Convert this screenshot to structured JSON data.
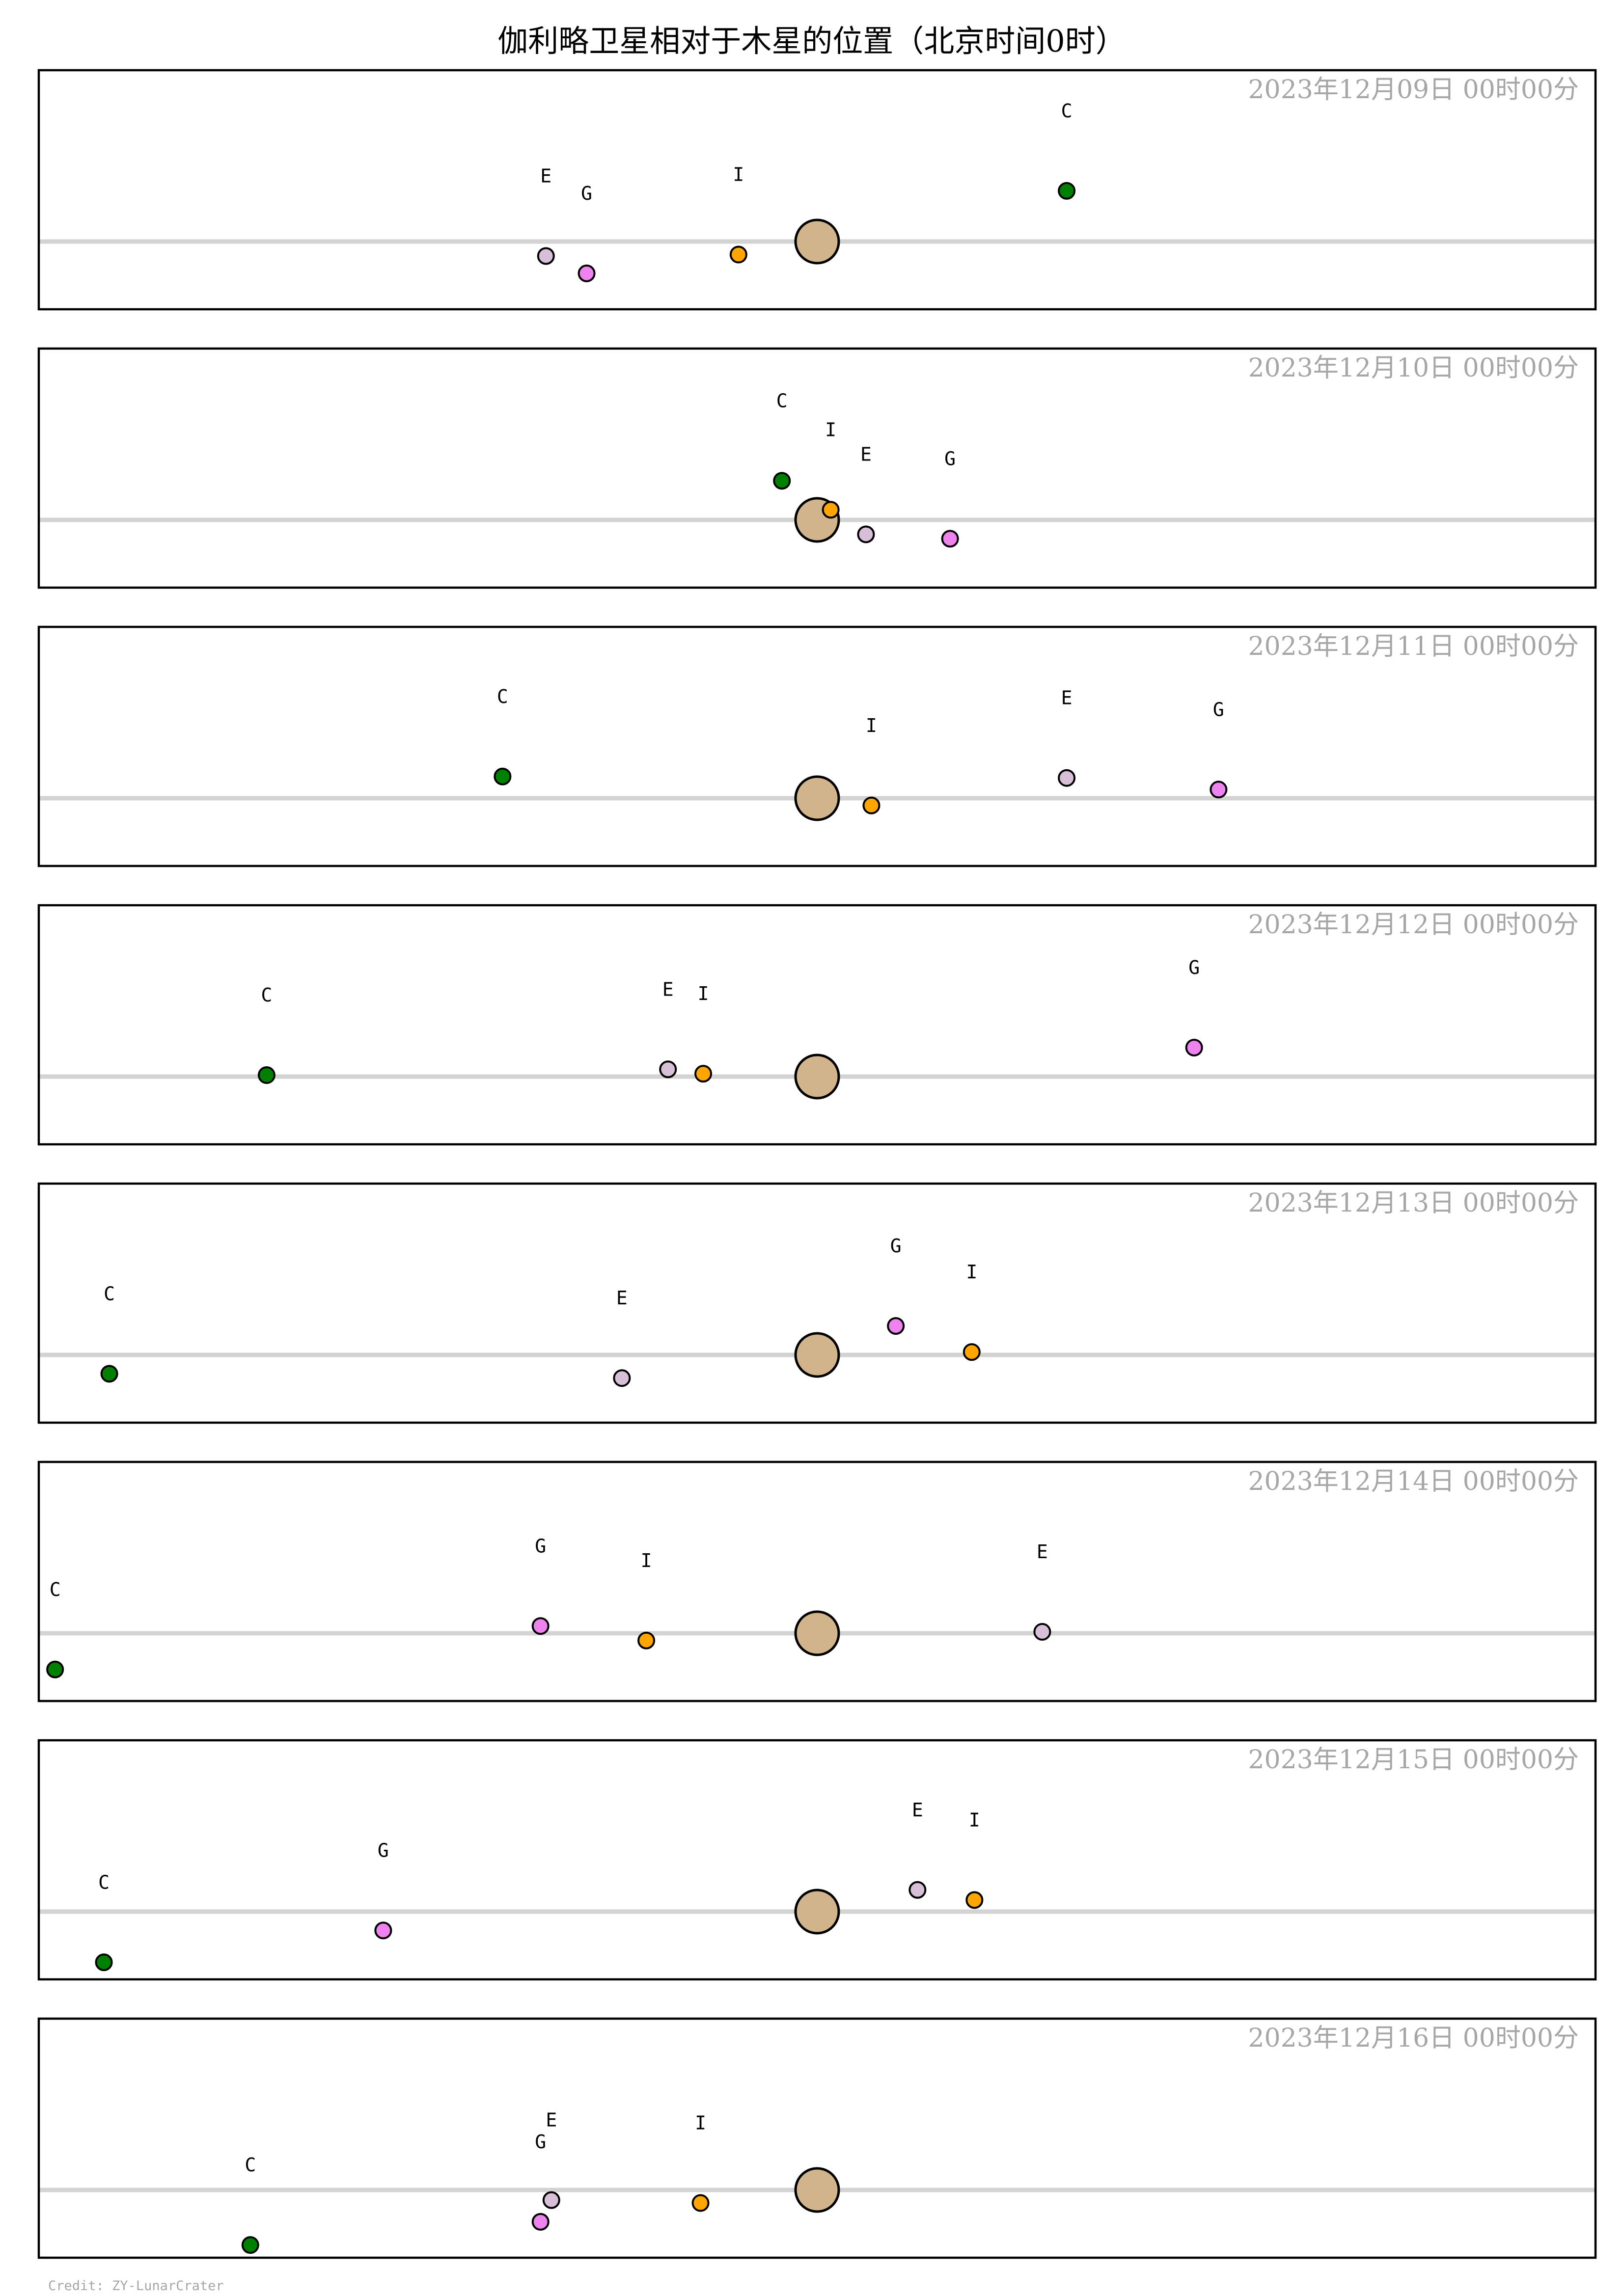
{
  "title": "伽利略卫星相对于木星的位置（北京时间0时）",
  "credit": "Credit: ZY-LunarCrater",
  "colors": {
    "jupiter": "#d2b48c",
    "io": "#ffa500",
    "europa": "#d8bfd8",
    "ganymede": "#ee82ee",
    "callisto": "#008000",
    "axis": "#d3d3d3",
    "date_text": "#a6a6a6"
  },
  "chart_data": {
    "type": "scatter",
    "x_unit": "Jupiter radii (east-west offset, approx.)",
    "y_unit": "Jupiter radii (north-south offset, approx.)",
    "xlim": [
      -28.7,
      28.7
    ],
    "ylim": [
      -3,
      11.8
    ],
    "grid": false,
    "panels": [
      {
        "date": "2023年12月09日  00时00分",
        "jupiter": {
          "x": 0,
          "y": 0
        },
        "moons": [
          {
            "label": "E",
            "x": -10.0,
            "y": -1.0
          },
          {
            "label": "G",
            "x": -8.5,
            "y": -2.2
          },
          {
            "label": "I",
            "x": -2.9,
            "y": -0.9
          },
          {
            "label": "C",
            "x": 9.2,
            "y": 3.5
          }
        ]
      },
      {
        "date": "2023年12月10日  00时00分",
        "jupiter": {
          "x": 0,
          "y": 0
        },
        "moons": [
          {
            "label": "C",
            "x": -1.3,
            "y": 2.7
          },
          {
            "label": "I",
            "x": 0.5,
            "y": 0.7
          },
          {
            "label": "E",
            "x": 1.8,
            "y": -1.0
          },
          {
            "label": "G",
            "x": 4.9,
            "y": -1.3
          }
        ]
      },
      {
        "date": "2023年12月11日  00时00分",
        "jupiter": {
          "x": 0,
          "y": 0
        },
        "moons": [
          {
            "label": "C",
            "x": -11.6,
            "y": 1.5
          },
          {
            "label": "I",
            "x": 2.0,
            "y": -0.5
          },
          {
            "label": "E",
            "x": 9.2,
            "y": 1.4
          },
          {
            "label": "G",
            "x": 14.8,
            "y": 0.6
          }
        ]
      },
      {
        "date": "2023年12月12日  00时00分",
        "jupiter": {
          "x": 0,
          "y": 0
        },
        "moons": [
          {
            "label": "C",
            "x": -20.3,
            "y": 0.1
          },
          {
            "label": "E",
            "x": -5.5,
            "y": 0.5
          },
          {
            "label": "I",
            "x": -4.2,
            "y": 0.2
          },
          {
            "label": "G",
            "x": 13.9,
            "y": 2.0
          }
        ]
      },
      {
        "date": "2023年12月13日  00时00分",
        "jupiter": {
          "x": 0,
          "y": 0
        },
        "moons": [
          {
            "label": "C",
            "x": -26.1,
            "y": -1.3
          },
          {
            "label": "E",
            "x": -7.2,
            "y": -1.6
          },
          {
            "label": "G",
            "x": 2.9,
            "y": 2.0
          },
          {
            "label": "I",
            "x": 5.7,
            "y": 0.2
          }
        ]
      },
      {
        "date": "2023年12月14日  00时00分",
        "jupiter": {
          "x": 0,
          "y": 0
        },
        "moons": [
          {
            "label": "C",
            "x": -28.1,
            "y": -2.5
          },
          {
            "label": "G",
            "x": -10.2,
            "y": 0.5
          },
          {
            "label": "I",
            "x": -6.3,
            "y": -0.5
          },
          {
            "label": "E",
            "x": 8.3,
            "y": 0.1
          }
        ]
      },
      {
        "date": "2023年12月15日  00时00分",
        "jupiter": {
          "x": 0,
          "y": 0
        },
        "moons": [
          {
            "label": "C",
            "x": -26.3,
            "y": -3.5
          },
          {
            "label": "G",
            "x": -16.0,
            "y": -1.3
          },
          {
            "label": "E",
            "x": 3.7,
            "y": 1.5
          },
          {
            "label": "I",
            "x": 5.8,
            "y": 0.8
          }
        ]
      },
      {
        "date": "2023年12月16日  00时00分",
        "jupiter": {
          "x": 0,
          "y": 0
        },
        "moons": [
          {
            "label": "C",
            "x": -20.9,
            "y": -3.8
          },
          {
            "label": "E",
            "x": -9.8,
            "y": -0.7
          },
          {
            "label": "G",
            "x": -10.2,
            "y": -2.2
          },
          {
            "label": "I",
            "x": -4.3,
            "y": -0.9
          }
        ]
      }
    ]
  }
}
